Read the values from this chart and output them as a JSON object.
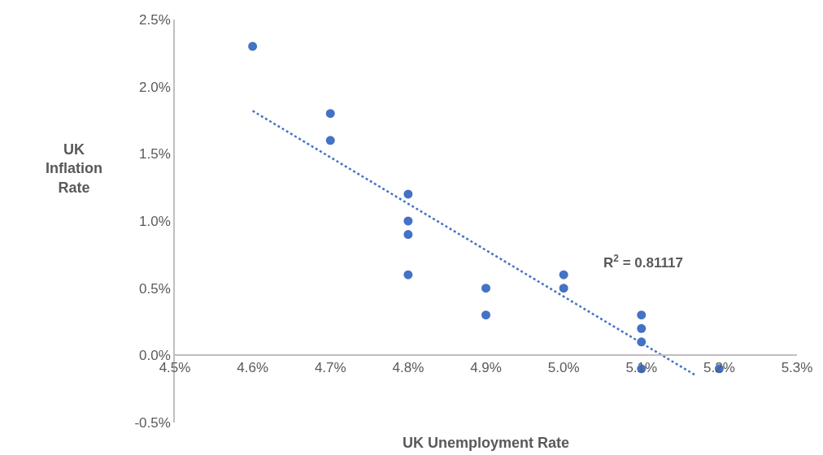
{
  "chart_data": {
    "type": "scatter",
    "xlabel": "UK Unemployment Rate",
    "ylabel": "UK Inflation Rate",
    "x": [
      4.6,
      4.7,
      4.7,
      4.8,
      4.8,
      4.8,
      4.8,
      4.9,
      4.9,
      5.0,
      5.0,
      5.1,
      5.1,
      5.1,
      5.1,
      5.2
    ],
    "series": [
      {
        "color": "#4472c4",
        "values": [
          2.3,
          1.8,
          1.6,
          1.2,
          1.0,
          0.9,
          0.6,
          0.5,
          0.3,
          0.6,
          0.5,
          0.3,
          0.2,
          0.1,
          -0.1,
          -0.1
        ]
      },
      {
        "type": "line",
        "color": "#4472c4",
        "line_style": "dotted",
        "marker": "none",
        "x": [
          4.6,
          5.17
        ],
        "values": [
          1.82,
          -0.15
        ]
      }
    ],
    "annotations": [
      "R$^{2}$ = 0.81117"
    ],
    "xlim": [
      4.5,
      5.3
    ],
    "xticks": [
      {
        "value": 4.5,
        "label": "4.5%"
      },
      {
        "value": 4.6,
        "label": "4.6%"
      },
      {
        "value": 4.7,
        "label": "4.7%"
      },
      {
        "value": 4.8,
        "label": "4.8%"
      },
      {
        "value": 4.9,
        "label": "4.9%"
      },
      {
        "value": 5.0,
        "label": "5.0%"
      },
      {
        "value": 5.1,
        "label": "5.1%"
      },
      {
        "value": 5.2,
        "label": "5.2%"
      },
      {
        "value": 5.3,
        "label": "5.3%"
      }
    ],
    "ylim": [
      -0.5,
      2.5
    ],
    "yticks": [
      {
        "value": -0.5,
        "label": "-0.5%"
      },
      {
        "value": 0.0,
        "label": "0.0%"
      },
      {
        "value": 0.5,
        "label": "0.5%"
      },
      {
        "value": 1.0,
        "label": "1.0%"
      },
      {
        "value": 1.5,
        "label": "1.5%"
      },
      {
        "value": 2.0,
        "label": "2.0%"
      },
      {
        "value": 2.5,
        "label": "2.5%"
      }
    ],
    "marker": "circle"
  }
}
